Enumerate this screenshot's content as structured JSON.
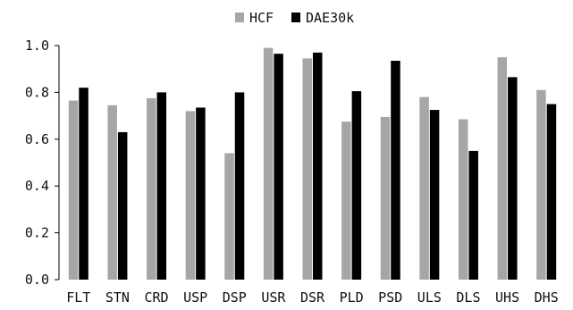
{
  "chart_data": {
    "type": "bar",
    "categories": [
      "FLT",
      "STN",
      "CRD",
      "USP",
      "DSP",
      "USR",
      "DSR",
      "PLD",
      "PSD",
      "ULS",
      "DLS",
      "UHS",
      "DHS"
    ],
    "series": [
      {
        "name": "HCF",
        "color": "#a6a6a6",
        "values": [
          0.765,
          0.745,
          0.775,
          0.72,
          0.54,
          0.99,
          0.945,
          0.675,
          0.695,
          0.78,
          0.685,
          0.95,
          0.81
        ]
      },
      {
        "name": "DAE30k",
        "color": "#000000",
        "values": [
          0.82,
          0.63,
          0.8,
          0.735,
          0.8,
          0.965,
          0.97,
          0.805,
          0.935,
          0.725,
          0.55,
          0.865,
          0.75
        ]
      }
    ],
    "ylim": [
      0.0,
      1.0
    ],
    "yticks": [
      "0.0",
      "0.2",
      "0.4",
      "0.6",
      "0.8",
      "1.0"
    ],
    "grid": false,
    "legend_position": "top-center",
    "xlabel": "",
    "ylabel": "",
    "title": ""
  }
}
